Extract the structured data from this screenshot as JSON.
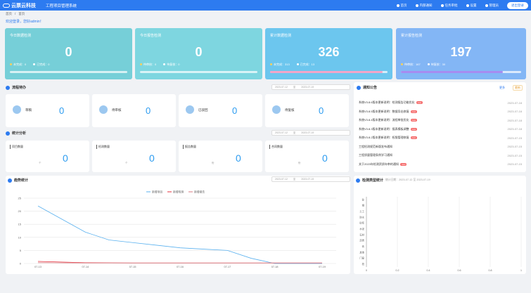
{
  "header": {
    "logo_text": "云票云科技",
    "system_name": "工程项目管理系统",
    "nav": [
      {
        "label": "首页",
        "icon": "home-icon"
      },
      {
        "label": "内部通知",
        "icon": "bell-icon"
      },
      {
        "label": "任务审批",
        "icon": "user-icon"
      },
      {
        "label": "设置",
        "icon": "gear-icon"
      }
    ],
    "user_name": "管理员",
    "action_button": "退出登录"
  },
  "breadcrumb": [
    "首页",
    "/",
    "首页"
  ],
  "welcome": "欢迎登录，您好admin！",
  "summary_cards": [
    {
      "title": "今日数据检测",
      "value": "0",
      "legend": [
        "未完成：0",
        "已完成：0"
      ],
      "color": "#76cfd8",
      "fill_color": "#ffffff",
      "progress": 0
    },
    {
      "title": "今日报告检测",
      "value": "0",
      "legend": [
        "待审核：0",
        "待复核：0"
      ],
      "color": "#7ed6e0",
      "fill_color": "#ffffff",
      "progress": 0
    },
    {
      "title": "累计数据检测",
      "value": "326",
      "legend": [
        "未完成：313",
        "已完成：13"
      ],
      "color": "#6cc6ee",
      "fill_color": "#f3a5c8",
      "progress": 0.96
    },
    {
      "title": "累计报告检测",
      "value": "197",
      "legend": [
        "待审核：167",
        "待复核：30"
      ],
      "color": "#83b6f5",
      "fill_color": "#a78bf0",
      "progress": 0.85
    }
  ],
  "task_section": {
    "title": "流程待办",
    "date_from": "2023-07-12",
    "date_sep": "至",
    "date_to": "2023-07-19",
    "items": [
      {
        "label": "草稿",
        "value": "0"
      },
      {
        "label": "待审核",
        "value": "0"
      },
      {
        "label": "已驳回",
        "value": "0"
      },
      {
        "label": "待复核",
        "value": "0"
      }
    ]
  },
  "stats_section": {
    "title": "统计分析",
    "date_from": "2023-07-12",
    "date_sep": "至",
    "date_to": "2023-07-19",
    "items": [
      {
        "label": "项目数量",
        "sub": "个",
        "value": "0"
      },
      {
        "label": "检测数量",
        "sub": "个",
        "value": "0"
      },
      {
        "label": "报告数量",
        "sub": "份",
        "value": "0"
      },
      {
        "label": "合同数量",
        "sub": "份",
        "value": "0"
      }
    ]
  },
  "news": {
    "title": "通知公告",
    "more": "更多",
    "tag": "最新",
    "items": [
      {
        "title": "系统V3.8.6版本更新说明：检测报告功能优化",
        "badge": "new",
        "date": "2023-07-18"
      },
      {
        "title": "系统V3.8.5版本更新说明：数据导出修复",
        "badge": "new",
        "date": "2023-07-18"
      },
      {
        "title": "系统V3.8.4版本更新说明：流程审批优化",
        "badge": "new",
        "date": "2023-07-18"
      },
      {
        "title": "系统V3.8.3版本更新说明：报表模板调整",
        "badge": "new",
        "date": "2023-07-18"
      },
      {
        "title": "系统V3.8.2版本更新说明：权限管理修复",
        "badge": "new",
        "date": "2023-07-15"
      },
      {
        "title": "工程检测规范新版发布通知",
        "badge": "",
        "date": "2023-07-15"
      },
      {
        "title": "工程质量管理条例学习通知",
        "badge": "",
        "date": "2023-07-15"
      },
      {
        "title": "关于2023年检测资质年审的通知",
        "badge": "new",
        "date": "2023-07-15"
      }
    ]
  },
  "trend": {
    "title": "趋势统计",
    "date_from": "2023-07-12",
    "date_sep": "至",
    "date_to": "2023-07-19"
  },
  "dist": {
    "title": "检测类型统计",
    "range": "统计日期：2023-07-12 至 2023-07-19"
  },
  "chart_data": [
    {
      "type": "line",
      "legend_position": "top",
      "categories": [
        "07-13",
        "07-14",
        "07-15",
        "07-16",
        "07-17",
        "07-18",
        "07-19"
      ],
      "ylim": [
        0,
        25
      ],
      "yticks": [
        "0",
        "5",
        "10",
        "15",
        "20",
        "25"
      ],
      "grid": true,
      "series": [
        {
          "name": "新增项目",
          "color": "#5ab1ef",
          "x": [
            0,
            0.5,
            1,
            1.5,
            2,
            2.5,
            3,
            3.5,
            4,
            4.5,
            5,
            5.5,
            6
          ],
          "values": [
            22,
            17,
            12,
            9,
            8,
            7,
            6,
            5.5,
            5,
            2,
            0,
            0,
            0
          ]
        },
        {
          "name": "新增检测",
          "color": "#e5323e",
          "x": [
            0,
            1,
            2,
            3,
            4,
            5,
            6
          ],
          "values": [
            0.8,
            0.3,
            0.2,
            0.2,
            0.2,
            0.2,
            0.2
          ]
        },
        {
          "name": "新增报告",
          "color": "#d87a80",
          "x": [
            0,
            1,
            2,
            3,
            4,
            5,
            6
          ],
          "values": [
            0.3,
            0.2,
            0.2,
            0.2,
            0.2,
            0.2,
            0.2
          ]
        }
      ]
    },
    {
      "type": "bar",
      "orientation": "horizontal",
      "categories": [
        "砼",
        "钢",
        "土工",
        "防水",
        "砂浆",
        "水泥",
        "石材",
        "沥青",
        "砖",
        "其他",
        "门窗",
        "桩"
      ],
      "values": [
        0,
        0,
        0,
        0,
        0,
        0,
        0,
        0,
        0,
        0,
        0,
        0
      ],
      "xlim": [
        0,
        1
      ],
      "xticks": [
        "0",
        "0.2",
        "0.4",
        "0.6",
        "0.8",
        "1"
      ],
      "grid": true
    }
  ]
}
